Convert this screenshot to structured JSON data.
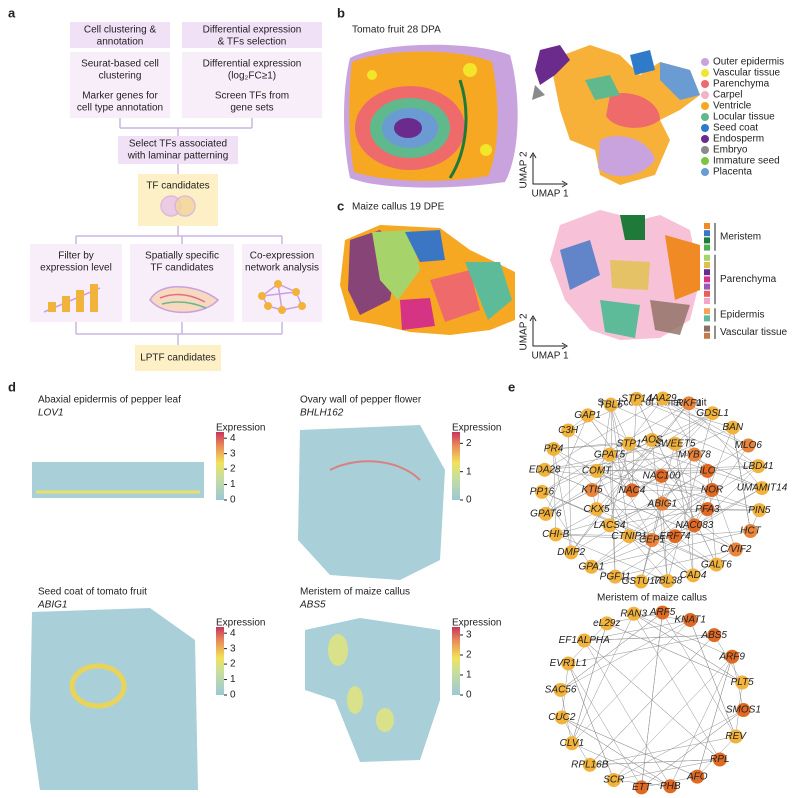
{
  "panel_a": {
    "label": "a",
    "header_left": [
      "Cell clustering &",
      "annotation"
    ],
    "steps_left": [
      "Seurat-based cell",
      "clustering",
      "Marker genes for",
      "cell type annotation"
    ],
    "header_right": [
      "Differential expression",
      "& TFs selection"
    ],
    "steps_right": [
      "Differential expression",
      "(log₂FC≥1)",
      "Screen TFs from",
      "gene sets"
    ],
    "select": [
      "Select TFs associated",
      "with laminar patterning"
    ],
    "tf_candidates": "TF candidates",
    "methods": [
      [
        "Filter by",
        "expression level"
      ],
      [
        "Spatially specific",
        "TF candidates"
      ],
      [
        "Co-expression",
        "network analysis"
      ]
    ],
    "final": "LPTF candidates"
  },
  "panel_b": {
    "label": "b",
    "title": "Tomato fruit 28 DPA",
    "umap_x": "UMAP 1",
    "umap_y": "UMAP 2",
    "legend": [
      {
        "name": "Outer epidermis",
        "color": "#c9a3dd"
      },
      {
        "name": "Vascular tissue",
        "color": "#f2e62a"
      },
      {
        "name": "Parenchyma",
        "color": "#ef6b6b"
      },
      {
        "name": "Carpel",
        "color": "#f4b3c4"
      },
      {
        "name": "Ventricle",
        "color": "#f6a823"
      },
      {
        "name": "Locular tissue",
        "color": "#5fb98c"
      },
      {
        "name": "Seed coat",
        "color": "#2f7ac9"
      },
      {
        "name": "Endosperm",
        "color": "#6b2b8c"
      },
      {
        "name": "Embryo",
        "color": "#8a8a8a"
      },
      {
        "name": "Immature seed",
        "color": "#7dc444"
      },
      {
        "name": "Placenta",
        "color": "#6b9bd3"
      }
    ]
  },
  "panel_c": {
    "label": "c",
    "title": "Maize callus 19 DPE",
    "umap_x": "UMAP 1",
    "umap_y": "UMAP 2",
    "groups": [
      {
        "name": "Meristem",
        "colors": [
          "#f08a24",
          "#3b76c4",
          "#1f7a3a",
          "#4caf50"
        ]
      },
      {
        "name": "Parenchyma",
        "colors": [
          "#a6d46a",
          "#e0c24a",
          "#6b2b8c",
          "#d63384",
          "#9b59b6",
          "#e85c5c",
          "#f4a6c6"
        ]
      },
      {
        "name": "Epidermis",
        "colors": [
          "#f7a35c",
          "#5dbb9a"
        ]
      },
      {
        "name": "Vascular tissue",
        "colors": [
          "#8d6e63",
          "#c47a4a"
        ]
      }
    ]
  },
  "panel_d": {
    "label": "d",
    "legend_title": "Expression",
    "plots": [
      {
        "title": "Abaxial epidermis of pepper leaf",
        "gene": "LOV1",
        "ticks": [
          0,
          1,
          2,
          3,
          4
        ]
      },
      {
        "title": "Ovary wall of pepper flower",
        "gene": "BHLH162",
        "ticks": [
          0,
          1,
          2
        ]
      },
      {
        "title": "Seed coat of tomato fruit",
        "gene": "ABIG1",
        "ticks": [
          0,
          1,
          2,
          3,
          4
        ]
      },
      {
        "title": "Meristem of maize callus",
        "gene": "ABS5",
        "ticks": [
          0,
          1,
          2,
          3
        ]
      }
    ]
  },
  "panel_e": {
    "label": "e",
    "networks": [
      {
        "title": "Seed coat of tomato fruit",
        "nodes": [
          {
            "label": "IAA29",
            "color": "#f2b33d"
          },
          {
            "label": "RKF1",
            "color": "#e9853a"
          },
          {
            "label": "GDSL1",
            "color": "#f2b33d"
          },
          {
            "label": "BAN",
            "color": "#f2b33d"
          },
          {
            "label": "MLO6",
            "color": "#e9853a"
          },
          {
            "label": "LBD41",
            "color": "#f2b33d"
          },
          {
            "label": "UMAMIT14",
            "color": "#f2b33d"
          },
          {
            "label": "PIN5",
            "color": "#f2b33d"
          },
          {
            "label": "HCT",
            "color": "#e9853a"
          },
          {
            "label": "C/VIF2",
            "color": "#e9853a"
          },
          {
            "label": "GALT6",
            "color": "#f2b33d"
          },
          {
            "label": "CAD4",
            "color": "#f2b33d"
          },
          {
            "label": "TBL38",
            "color": "#f2b33d"
          },
          {
            "label": "GSTU17",
            "color": "#f2b33d"
          },
          {
            "label": "PGF11",
            "color": "#f2b33d"
          },
          {
            "label": "GPA1",
            "color": "#f2b33d"
          },
          {
            "label": "DMP2",
            "color": "#f2b33d"
          },
          {
            "label": "CHI-B",
            "color": "#f2b33d"
          },
          {
            "label": "GPAT6",
            "color": "#f2b33d"
          },
          {
            "label": "PP16",
            "color": "#f2b33d"
          },
          {
            "label": "EDA28",
            "color": "#f2b33d"
          },
          {
            "label": "PR4",
            "color": "#f2b33d"
          },
          {
            "label": "C3H",
            "color": "#f2b33d"
          },
          {
            "label": "GAP1",
            "color": "#f2b33d"
          },
          {
            "label": "TBL6",
            "color": "#f2b33d"
          },
          {
            "label": "STP14",
            "color": "#f2b33d"
          },
          {
            "label": "AOS",
            "color": "#f2b33d"
          },
          {
            "label": "SWEET5",
            "color": "#f2b33d"
          },
          {
            "label": "MYB78",
            "color": "#e9853a"
          },
          {
            "label": "ILO",
            "color": "#e06a24"
          },
          {
            "label": "NOR",
            "color": "#e06a24"
          },
          {
            "label": "PFA3",
            "color": "#e06a24"
          },
          {
            "label": "NAC083",
            "color": "#e06a24"
          },
          {
            "label": "ERF74",
            "color": "#e06a24"
          },
          {
            "label": "CEP1",
            "color": "#e9853a"
          },
          {
            "label": "CTNIP1",
            "color": "#f2b33d"
          },
          {
            "label": "LACS4",
            "color": "#f2b33d"
          },
          {
            "label": "CKX5",
            "color": "#f2b33d"
          },
          {
            "label": "KTI5",
            "color": "#e9853a"
          },
          {
            "label": "COMT",
            "color": "#f2b33d"
          },
          {
            "label": "GPAT5",
            "color": "#f2b33d"
          },
          {
            "label": "STP1",
            "color": "#f2b33d"
          },
          {
            "label": "NAC100",
            "color": "#e06a24"
          },
          {
            "label": "ABIG1",
            "color": "#e9853a"
          },
          {
            "label": "NAC4",
            "color": "#e06a24"
          }
        ]
      },
      {
        "title": "Meristem of maize callus",
        "nodes": [
          {
            "label": "RAN3",
            "color": "#f2b33d"
          },
          {
            "label": "ARF5",
            "color": "#e06a24"
          },
          {
            "label": "KNAT1",
            "color": "#e06a24"
          },
          {
            "label": "ABS5",
            "color": "#e06a24"
          },
          {
            "label": "ARF9",
            "color": "#e06a24"
          },
          {
            "label": "PLT5",
            "color": "#f2b33d"
          },
          {
            "label": "SMOS1",
            "color": "#e06a24"
          },
          {
            "label": "REV",
            "color": "#f2b33d"
          },
          {
            "label": "RPL",
            "color": "#e06a24"
          },
          {
            "label": "AFO",
            "color": "#e06a24"
          },
          {
            "label": "PHB",
            "color": "#e06a24"
          },
          {
            "label": "ETT",
            "color": "#e06a24"
          },
          {
            "label": "SCR",
            "color": "#f2b33d"
          },
          {
            "label": "RPL16B",
            "color": "#f2b33d"
          },
          {
            "label": "CLV1",
            "color": "#f2b33d"
          },
          {
            "label": "CUC2",
            "color": "#f2b33d"
          },
          {
            "label": "SAC56",
            "color": "#f2b33d"
          },
          {
            "label": "EVR1L1",
            "color": "#f2b33d"
          },
          {
            "label": "EF1ALPHA",
            "color": "#f2b33d"
          },
          {
            "label": "eL29z",
            "color": "#f2b33d"
          }
        ]
      }
    ]
  }
}
